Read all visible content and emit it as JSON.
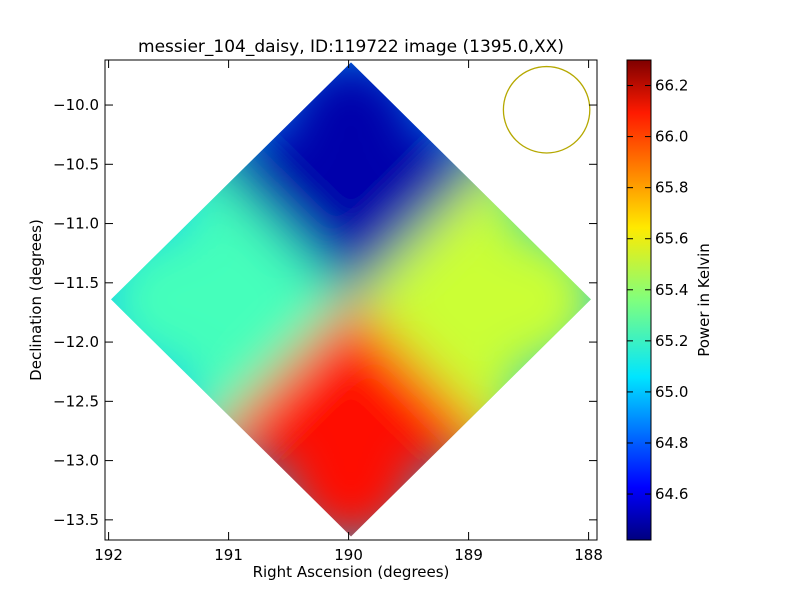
{
  "chart_data": {
    "type": "heatmap",
    "title": "messier_104_daisy, ID:119722 image (1395.0,XX)",
    "xlabel": "Right Ascension (degrees)",
    "ylabel": "Declination (degrees)",
    "colorbar_label": "Power in Kelvin",
    "colormap": "jet",
    "x_direction": "reversed",
    "xlim": [
      192.03,
      187.93
    ],
    "ylim": [
      -13.67,
      -9.62
    ],
    "x_ticks": [
      192,
      191,
      190,
      189,
      188
    ],
    "y_ticks": [
      -10.0,
      -10.5,
      -11.0,
      -11.5,
      -12.0,
      -12.5,
      -13.0,
      -13.5
    ],
    "colorbar_range": [
      64.42,
      66.3
    ],
    "colorbar_ticks": [
      64.6,
      64.8,
      65.0,
      65.2,
      65.4,
      65.6,
      65.8,
      66.0,
      66.2
    ],
    "map_center": [
      189.98,
      -11.64
    ],
    "map_half_extent_deg": 2.0,
    "quadrant_values": {
      "north": 64.5,
      "south": 66.05,
      "east": 65.25,
      "west": 65.5,
      "center": 65.0
    },
    "beam_circle": {
      "ra": 188.35,
      "dec": -10.04,
      "radius_deg": 0.36,
      "color": "#b5a800"
    }
  }
}
